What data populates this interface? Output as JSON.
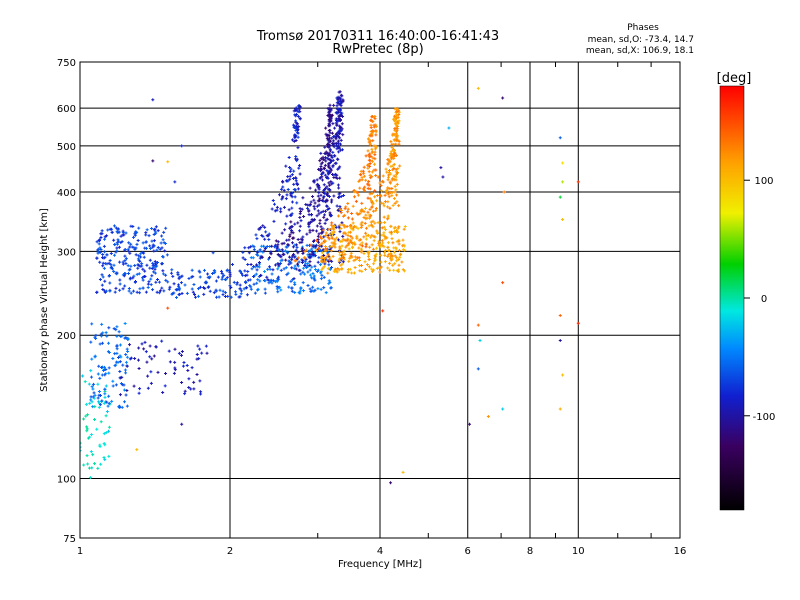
{
  "header": {
    "title_line1": "Tromsø 20170311 16:40:00-16:41:43",
    "title_line2": "RwPretec (8p)"
  },
  "stats": {
    "heading": "Phases",
    "line_o": "mean, sd,O: -73.4, 14.7",
    "line_x": "mean, sd,X: 106.9, 18.1"
  },
  "colorbar": {
    "unit_label": "[deg]",
    "ticks": [
      {
        "label": "100",
        "value": 100
      },
      {
        "label": "0",
        "value": 0
      },
      {
        "label": "-100",
        "value": -100
      }
    ],
    "range": [
      -180,
      180
    ]
  },
  "chart_data": {
    "type": "scatter",
    "title": "Tromsø 20170311 16:40:00-16:41:43",
    "subtitle": "RwPretec (8p)",
    "xlabel": "Frequency [MHz]",
    "ylabel": "Stationary phase Virtual Height [km]",
    "x_scale": "log",
    "y_scale": "log",
    "xlim": [
      1,
      16
    ],
    "ylim": [
      75,
      750
    ],
    "grid": true,
    "x_ticks": [
      {
        "label": "1",
        "value": 1
      },
      {
        "label": "2",
        "value": 2
      },
      {
        "label": "4",
        "value": 4
      },
      {
        "label": "6",
        "value": 6
      },
      {
        "label": "8",
        "value": 8
      },
      {
        "label": "10",
        "value": 10
      },
      {
        "label": "16",
        "value": 16
      }
    ],
    "y_ticks": [
      {
        "label": "75",
        "value": 75
      },
      {
        "label": "100",
        "value": 100
      },
      {
        "label": "200",
        "value": 200
      },
      {
        "label": "300",
        "value": 300
      },
      {
        "label": "400",
        "value": 400
      },
      {
        "label": "500",
        "value": 500
      },
      {
        "label": "600",
        "value": 600
      },
      {
        "label": "750",
        "value": 750
      }
    ],
    "color_encoding": "phase [deg]",
    "trace_groups": [
      {
        "mode": "O",
        "x_range": [
          1.0,
          1.15
        ],
        "y_range": [
          100,
          170
        ],
        "phase": -10,
        "density": 60
      },
      {
        "mode": "O",
        "x_range": [
          1.05,
          1.25
        ],
        "y_range": [
          140,
          215
        ],
        "phase": -55,
        "density": 110
      },
      {
        "mode": "O",
        "x_range": [
          1.2,
          1.8
        ],
        "y_range": [
          150,
          195
        ],
        "phase": -95,
        "density": 70
      },
      {
        "mode": "O",
        "x_range": [
          1.08,
          1.5
        ],
        "y_range": [
          245,
          340
        ],
        "phase": -70,
        "density": 260
      },
      {
        "mode": "O",
        "x_range": [
          1.5,
          2.2
        ],
        "y_range": [
          240,
          275
        ],
        "phase": -70,
        "density": 120
      },
      {
        "mode": "O",
        "x_range": [
          2.2,
          3.2
        ],
        "y_range": [
          245,
          310
        ],
        "phase": -55,
        "density": 200
      },
      {
        "mode": "O",
        "cusp_freq": 2.75,
        "y_range": [
          260,
          620
        ],
        "phase": -85,
        "density": 180
      },
      {
        "mode": "O",
        "cusp_freq": 3.2,
        "y_range": [
          280,
          610
        ],
        "phase": -110,
        "density": 220
      },
      {
        "mode": "O",
        "cusp_freq": 3.35,
        "y_range": [
          280,
          650
        ],
        "phase": -95,
        "density": 280
      },
      {
        "mode": "X",
        "x_range": [
          3.05,
          4.5
        ],
        "y_range": [
          270,
          340
        ],
        "phase": 110,
        "density": 220
      },
      {
        "mode": "X",
        "cusp_freq": 3.9,
        "y_range": [
          285,
          580
        ],
        "phase": 130,
        "density": 200
      },
      {
        "mode": "X",
        "cusp_freq": 4.35,
        "y_range": [
          290,
          600
        ],
        "phase": 120,
        "density": 230
      }
    ],
    "isolated_points": [
      {
        "x": 6.3,
        "y": 660,
        "phase": 100
      },
      {
        "x": 7.05,
        "y": 630,
        "phase": -120
      },
      {
        "x": 6.3,
        "y": 210,
        "phase": 140
      },
      {
        "x": 6.35,
        "y": 195,
        "phase": -20
      },
      {
        "x": 6.3,
        "y": 170,
        "phase": -60
      },
      {
        "x": 6.6,
        "y": 135,
        "phase": 120
      },
      {
        "x": 6.05,
        "y": 130,
        "phase": -120
      },
      {
        "x": 7.05,
        "y": 258,
        "phase": 150
      },
      {
        "x": 7.05,
        "y": 140,
        "phase": -20
      },
      {
        "x": 4.45,
        "y": 103,
        "phase": 100
      },
      {
        "x": 4.2,
        "y": 98,
        "phase": -120
      },
      {
        "x": 4.05,
        "y": 225,
        "phase": 160
      },
      {
        "x": 5.5,
        "y": 545,
        "phase": -30
      },
      {
        "x": 5.3,
        "y": 450,
        "phase": -100
      },
      {
        "x": 5.35,
        "y": 430,
        "phase": -100
      },
      {
        "x": 9.2,
        "y": 520,
        "phase": -60
      },
      {
        "x": 9.3,
        "y": 460,
        "phase": 80
      },
      {
        "x": 9.3,
        "y": 420,
        "phase": 60
      },
      {
        "x": 9.2,
        "y": 390,
        "phase": 20
      },
      {
        "x": 9.3,
        "y": 350,
        "phase": 100
      },
      {
        "x": 9.2,
        "y": 220,
        "phase": 140
      },
      {
        "x": 9.2,
        "y": 195,
        "phase": -100
      },
      {
        "x": 9.3,
        "y": 165,
        "phase": 100
      },
      {
        "x": 9.2,
        "y": 140,
        "phase": 110
      },
      {
        "x": 10.0,
        "y": 420,
        "phase": 160
      },
      {
        "x": 10.0,
        "y": 212,
        "phase": 165
      },
      {
        "x": 7.1,
        "y": 400,
        "phase": 130
      },
      {
        "x": 1.4,
        "y": 625,
        "phase": -90
      },
      {
        "x": 1.4,
        "y": 465,
        "phase": -120
      },
      {
        "x": 1.55,
        "y": 420,
        "phase": -80
      },
      {
        "x": 1.5,
        "y": 463,
        "phase": 100
      },
      {
        "x": 1.6,
        "y": 500,
        "phase": -80
      },
      {
        "x": 1.45,
        "y": 248,
        "phase": -100
      },
      {
        "x": 1.5,
        "y": 228,
        "phase": 150
      },
      {
        "x": 1.85,
        "y": 298,
        "phase": -70
      },
      {
        "x": 1.6,
        "y": 130,
        "phase": -100
      },
      {
        "x": 1.3,
        "y": 115,
        "phase": 100
      }
    ]
  }
}
